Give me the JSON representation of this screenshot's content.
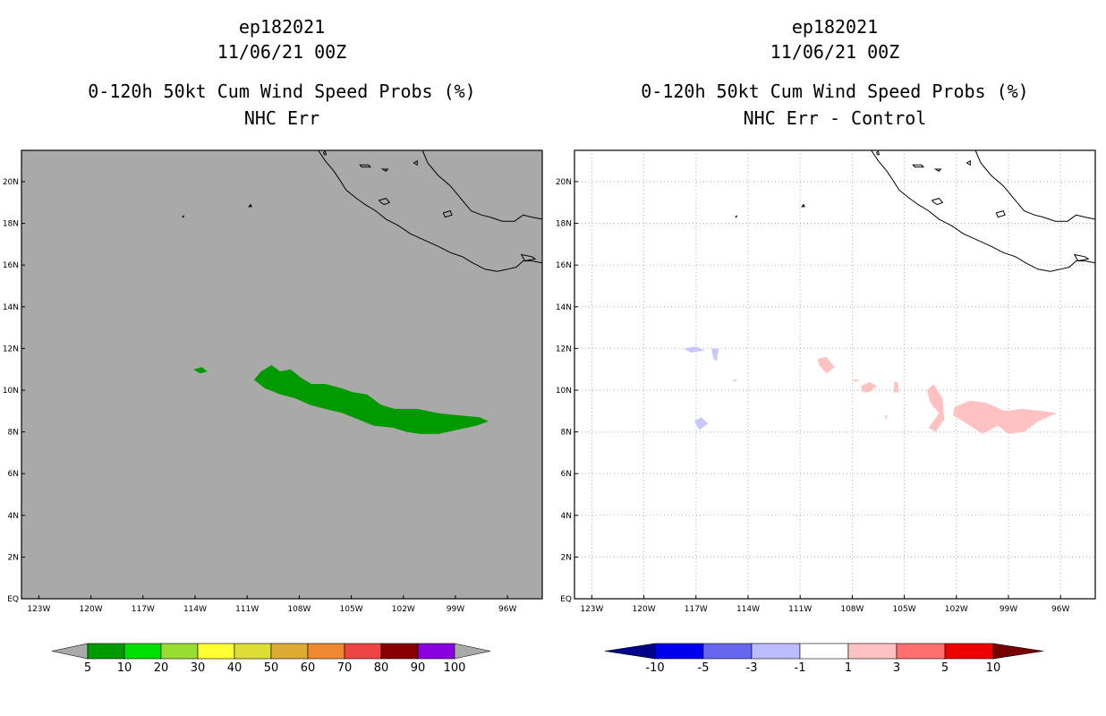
{
  "panels": [
    {
      "storm_id": "ep182021",
      "datetime": "11/06/21 00Z",
      "product": "0-120h 50kt Cum Wind Speed Probs (%)",
      "subtitle": "NHC Err",
      "background_color": "#a9a9a9",
      "gridlines": false,
      "colorbar": {
        "labels": [
          "5",
          "10",
          "20",
          "30",
          "40",
          "50",
          "60",
          "70",
          "80",
          "90",
          "100"
        ],
        "colors": [
          "#a9a9a9",
          "#009900",
          "#00dd00",
          "#99dd33",
          "#ffff33",
          "#dddd33",
          "#ddaa33",
          "#ee8833",
          "#ee4444",
          "#880000",
          "#8800dd",
          "#a9a9a9"
        ]
      },
      "regions": [
        {
          "name": "main-swath",
          "value_range": "5-10",
          "color": "#009900",
          "outline": [
            [
              -110.6,
              10.5
            ],
            [
              -110.2,
              10.9
            ],
            [
              -109.6,
              11.2
            ],
            [
              -109.1,
              10.9
            ],
            [
              -108.5,
              11.0
            ],
            [
              -107.9,
              10.6
            ],
            [
              -107.3,
              10.3
            ],
            [
              -106.5,
              10.3
            ],
            [
              -105.6,
              10.1
            ],
            [
              -104.9,
              9.9
            ],
            [
              -104.1,
              9.8
            ],
            [
              -103.3,
              9.3
            ],
            [
              -102.5,
              9.1
            ],
            [
              -101.2,
              9.1
            ],
            [
              -100.0,
              8.9
            ],
            [
              -98.9,
              8.8
            ],
            [
              -97.6,
              8.7
            ],
            [
              -97.1,
              8.5
            ],
            [
              -97.8,
              8.3
            ],
            [
              -98.9,
              8.1
            ],
            [
              -100.0,
              7.9
            ],
            [
              -101.0,
              7.9
            ],
            [
              -101.8,
              8.0
            ],
            [
              -102.6,
              8.2
            ],
            [
              -103.7,
              8.3
            ],
            [
              -104.6,
              8.6
            ],
            [
              -105.5,
              8.9
            ],
            [
              -106.5,
              9.1
            ],
            [
              -107.4,
              9.3
            ],
            [
              -108.2,
              9.6
            ],
            [
              -109.1,
              9.8
            ],
            [
              -110.0,
              10.1
            ]
          ]
        },
        {
          "name": "isolated-patch",
          "value_range": "5-10",
          "color": "#009900",
          "outline": [
            [
              -114.1,
              11.0
            ],
            [
              -113.6,
              11.1
            ],
            [
              -113.3,
              10.9
            ],
            [
              -113.7,
              10.8
            ]
          ]
        }
      ]
    },
    {
      "storm_id": "ep182021",
      "datetime": "11/06/21 00Z",
      "product": "0-120h 50kt Cum Wind Speed Probs (%)",
      "subtitle": "NHC Err - Control",
      "background_color": "#ffffff",
      "gridlines": true,
      "colorbar": {
        "labels": [
          "-10",
          "-5",
          "-3",
          "-1",
          "1",
          "3",
          "5",
          "10"
        ],
        "colors": [
          "#000088",
          "#0000ee",
          "#6666ee",
          "#bbbbff",
          "#ffffff",
          "#ffc1c1",
          "#ff7070",
          "#ee0000",
          "#770000"
        ]
      },
      "regions": [
        {
          "name": "neg-patch-a",
          "value_range": "-3 to -1",
          "color": "#c8c8ff",
          "outline": [
            [
              -117.7,
              12.0
            ],
            [
              -117.0,
              12.1
            ],
            [
              -116.5,
              11.9
            ],
            [
              -117.3,
              11.8
            ]
          ]
        },
        {
          "name": "neg-patch-b",
          "value_range": "-3 to -1",
          "color": "#c8c8ff",
          "outline": [
            [
              -116.1,
              12.0
            ],
            [
              -115.7,
              12.0
            ],
            [
              -115.8,
              11.4
            ],
            [
              -116.0,
              11.5
            ]
          ]
        },
        {
          "name": "neg-patch-c",
          "value_range": "-3 to -1",
          "color": "#c8c8ff",
          "outline": [
            [
              -117.1,
              8.5
            ],
            [
              -116.7,
              8.7
            ],
            [
              -116.3,
              8.4
            ],
            [
              -116.8,
              8.1
            ]
          ]
        },
        {
          "name": "neg-patch-d",
          "value_range": "-3 to -1",
          "color": "#c8c8ff",
          "outline": [
            [
              -114.9,
              10.5
            ],
            [
              -114.6,
              10.5
            ],
            [
              -114.8,
              10.4
            ]
          ]
        },
        {
          "name": "pos-patch-a",
          "value_range": "1 to 3",
          "color": "#ffc1c1",
          "outline": [
            [
              -110.0,
              11.5
            ],
            [
              -109.5,
              11.6
            ],
            [
              -109.0,
              11.1
            ],
            [
              -109.5,
              10.8
            ],
            [
              -109.9,
              11.2
            ]
          ]
        },
        {
          "name": "pos-patch-b",
          "value_range": "1 to 3",
          "color": "#ffc1c1",
          "outline": [
            [
              -108.0,
              10.5
            ],
            [
              -107.6,
              10.5
            ],
            [
              -107.8,
              10.4
            ]
          ]
        },
        {
          "name": "pos-patch-c",
          "value_range": "1 to 3",
          "color": "#ffc1c1",
          "outline": [
            [
              -107.5,
              10.2
            ],
            [
              -107.0,
              10.4
            ],
            [
              -106.6,
              10.2
            ],
            [
              -107.0,
              9.9
            ],
            [
              -107.4,
              9.9
            ]
          ]
        },
        {
          "name": "pos-patch-d",
          "value_range": "1 to 3",
          "color": "#ffc1c1",
          "outline": [
            [
              -105.6,
              10.4
            ],
            [
              -105.4,
              10.4
            ],
            [
              -105.3,
              9.9
            ],
            [
              -105.6,
              9.9
            ]
          ]
        },
        {
          "name": "pos-patch-e",
          "value_range": "1 to 3",
          "color": "#ffc1c1",
          "outline": [
            [
              -106.1,
              8.8
            ],
            [
              -106.0,
              8.8
            ],
            [
              -106.0,
              8.6
            ],
            [
              -106.1,
              8.6
            ]
          ]
        },
        {
          "name": "pos-patch-f",
          "value_range": "1 to 3",
          "color": "#ffc1c1",
          "outline": [
            [
              -103.7,
              10.0
            ],
            [
              -103.3,
              10.3
            ],
            [
              -102.8,
              9.6
            ],
            [
              -102.7,
              8.6
            ],
            [
              -103.2,
              8.0
            ],
            [
              -103.6,
              8.2
            ],
            [
              -103.0,
              8.9
            ],
            [
              -103.5,
              9.4
            ]
          ]
        },
        {
          "name": "pos-patch-g",
          "value_range": "1 to 3",
          "color": "#ffc1c1",
          "outline": [
            [
              -102.1,
              9.2
            ],
            [
              -101.2,
              9.5
            ],
            [
              -100.3,
              9.4
            ],
            [
              -99.2,
              9.0
            ],
            [
              -98.2,
              9.1
            ],
            [
              -97.1,
              9.0
            ],
            [
              -96.2,
              8.9
            ],
            [
              -97.3,
              8.5
            ],
            [
              -98.1,
              8.0
            ],
            [
              -99.0,
              7.9
            ],
            [
              -99.6,
              8.3
            ],
            [
              -100.5,
              7.9
            ],
            [
              -101.4,
              8.4
            ],
            [
              -102.2,
              8.8
            ]
          ]
        }
      ]
    }
  ],
  "map": {
    "lon_range": [
      -124,
      -94
    ],
    "lat_range": [
      0,
      21.5
    ],
    "lon_ticks": [
      -123,
      -120,
      -117,
      -114,
      -111,
      -108,
      -105,
      -102,
      -99,
      -96
    ],
    "lon_tick_labels": [
      "123W",
      "120W",
      "117W",
      "114W",
      "111W",
      "108W",
      "105W",
      "102W",
      "99W",
      "96W"
    ],
    "lat_ticks": [
      0,
      2,
      4,
      6,
      8,
      10,
      12,
      14,
      16,
      18,
      20
    ],
    "lat_tick_labels": [
      "EQ",
      "2N",
      "4N",
      "6N",
      "8N",
      "10N",
      "12N",
      "14N",
      "16N",
      "18N",
      "20N"
    ],
    "coastline": [
      [
        -106.9,
        21.5
      ],
      [
        -106.5,
        21.0
      ],
      [
        -106.0,
        20.5
      ],
      [
        -105.6,
        20.0
      ],
      [
        -105.3,
        19.6
      ],
      [
        -104.7,
        19.2
      ],
      [
        -104.2,
        18.9
      ],
      [
        -103.6,
        18.6
      ],
      [
        -103.0,
        18.2
      ],
      [
        -102.3,
        17.9
      ],
      [
        -101.6,
        17.5
      ],
      [
        -100.8,
        17.2
      ],
      [
        -100.0,
        16.9
      ],
      [
        -99.3,
        16.6
      ],
      [
        -98.6,
        16.4
      ],
      [
        -98.0,
        16.1
      ],
      [
        -97.3,
        15.8
      ],
      [
        -96.6,
        15.7
      ],
      [
        -96.0,
        15.8
      ],
      [
        -95.5,
        15.9
      ],
      [
        -95.1,
        16.2
      ],
      [
        -94.6,
        16.2
      ],
      [
        -94.0,
        16.1
      ]
    ],
    "coastline_north": [
      [
        -100.9,
        21.5
      ],
      [
        -100.6,
        20.9
      ],
      [
        -100.0,
        20.3
      ],
      [
        -99.3,
        19.8
      ],
      [
        -98.7,
        19.2
      ],
      [
        -98.1,
        18.6
      ],
      [
        -97.5,
        18.4
      ],
      [
        -97.0,
        18.3
      ],
      [
        -96.3,
        18.1
      ],
      [
        -95.6,
        18.1
      ],
      [
        -95.1,
        18.4
      ],
      [
        -94.6,
        18.3
      ],
      [
        -94.0,
        18.2
      ]
    ],
    "islands": [
      [
        [
          -106.6,
          21.4
        ],
        [
          -106.5,
          21.45
        ],
        [
          -106.45,
          21.3
        ],
        [
          -106.55,
          21.3
        ]
      ],
      [
        [
          -104.5,
          20.8
        ],
        [
          -104.0,
          20.8
        ],
        [
          -103.9,
          20.7
        ],
        [
          -104.4,
          20.7
        ]
      ],
      [
        [
          -103.2,
          20.6
        ],
        [
          -102.9,
          20.6
        ],
        [
          -103.0,
          20.5
        ]
      ],
      [
        [
          -101.4,
          20.9
        ],
        [
          -101.2,
          21.0
        ],
        [
          -101.2,
          20.8
        ]
      ],
      [
        [
          -103.4,
          19.1
        ],
        [
          -103.0,
          19.2
        ],
        [
          -102.8,
          19.0
        ],
        [
          -103.1,
          18.9
        ],
        [
          -103.3,
          19.0
        ]
      ],
      [
        [
          -99.7,
          18.5
        ],
        [
          -99.3,
          18.6
        ],
        [
          -99.2,
          18.4
        ],
        [
          -99.6,
          18.3
        ]
      ],
      [
        [
          -110.9,
          18.8
        ],
        [
          -110.8,
          18.9
        ],
        [
          -110.75,
          18.8
        ]
      ],
      [
        [
          -114.7,
          18.35
        ],
        [
          -114.65,
          18.35
        ],
        [
          -114.7,
          18.3
        ]
      ],
      [
        [
          -95.2,
          16.5
        ],
        [
          -94.6,
          16.4
        ],
        [
          -94.4,
          16.3
        ],
        [
          -95.0,
          16.2
        ]
      ]
    ]
  }
}
